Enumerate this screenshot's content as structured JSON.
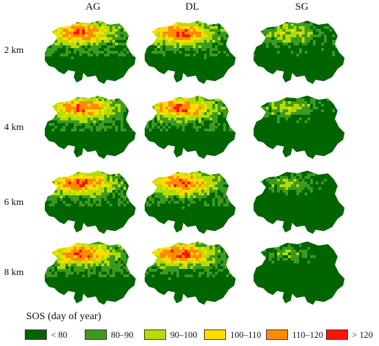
{
  "columns": [
    "AG",
    "DL",
    "SG"
  ],
  "rows": [
    "2 km",
    "4 km",
    "6 km",
    "8 km"
  ],
  "legend": {
    "title": "SOS (day of year)",
    "classes": [
      {
        "label": "< 80",
        "color": "#006400"
      },
      {
        "label": "80–90",
        "color": "#3c9a1e"
      },
      {
        "label": "90–100",
        "color": "#b4dc00"
      },
      {
        "label": "100–110",
        "color": "#ffdc00"
      },
      {
        "label": "110–120",
        "color": "#ff8c00"
      },
      {
        "label": "> 120",
        "color": "#ff1400"
      }
    ]
  }
}
